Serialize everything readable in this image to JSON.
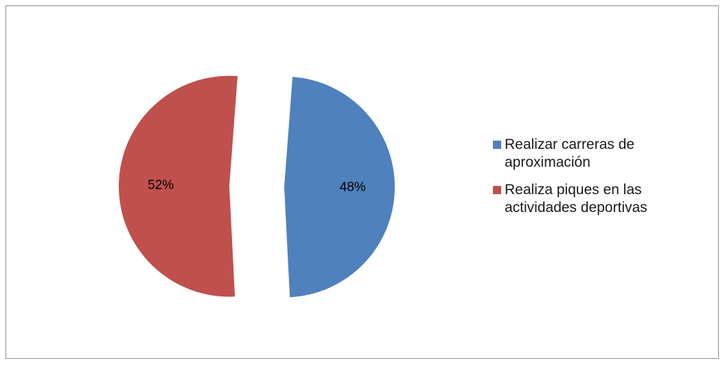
{
  "chart_data": {
    "type": "pie",
    "exploded": true,
    "slices": [
      {
        "label": "Realizar carreras de\naproximación",
        "value": 48,
        "data_label": "48%",
        "color": "#4f81bd"
      },
      {
        "label": "Realiza piques en las\nactividades deportivas",
        "value": 52,
        "data_label": "52%",
        "color": "#c0504d"
      }
    ],
    "legend_position": "right",
    "title": ""
  }
}
